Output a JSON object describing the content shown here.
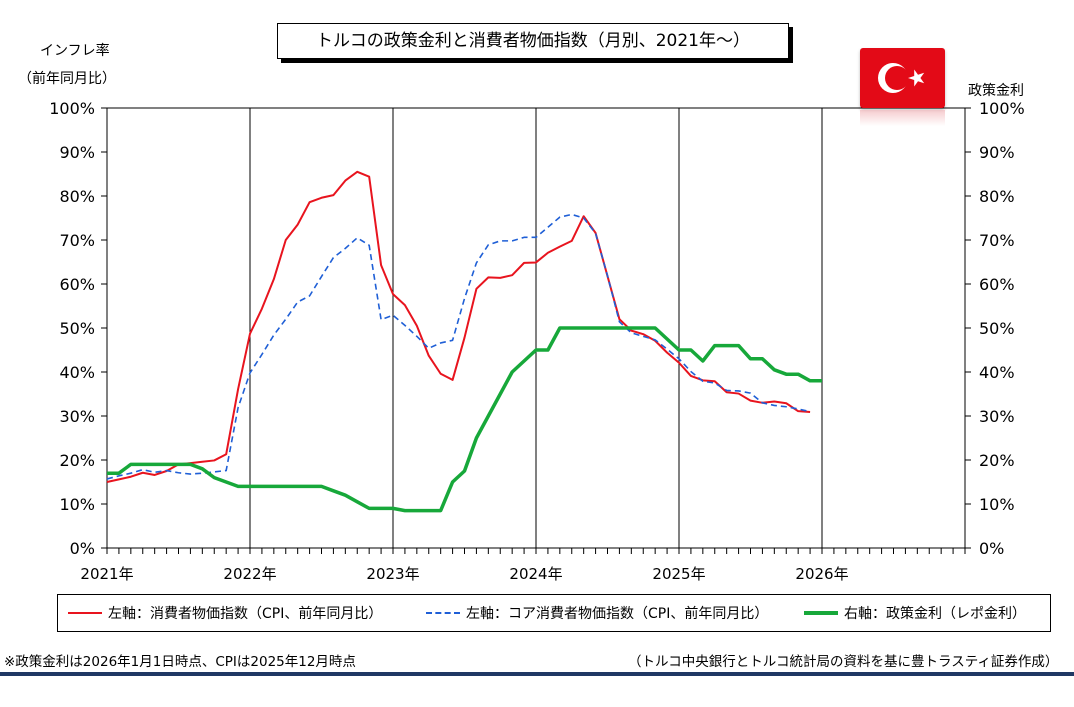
{
  "title": "トルコの政策金利と消費者物価指数（月別、2021年〜）",
  "left_axis_caption_line1": "インフレ率",
  "left_axis_caption_line2": "（前年同月比）",
  "right_axis_caption": "政策金利",
  "flag_icon": "turkey-flag-icon",
  "colors": {
    "cpi": "#e8141e",
    "core_cpi": "#1f5fd6",
    "policy_rate": "#17a83a"
  },
  "legend": {
    "cpi": "左軸：消費者物価指数（CPI、前年同月比）",
    "core_cpi": "左軸：コア消費者物価指数（CPI、前年同月比）",
    "policy_rate": "右軸：政策金利（レポ金利）"
  },
  "footnote_left": "※政策金利は2026年1月1日時点、CPIは2025年12月時点",
  "footnote_right": "（トルコ中央銀行とトルコ統計局の資料を基に豊トラスティ証券作成）",
  "chart_data": {
    "type": "line",
    "title": "トルコの政策金利と消費者物価指数（月別、2021年〜）",
    "x_unit": "month",
    "x_start": "2021-01",
    "xlim": [
      "2021-01",
      "2026-12"
    ],
    "x_ticks": [
      "2021年",
      "2022年",
      "2023年",
      "2024年",
      "2025年",
      "2026年"
    ],
    "y_left": {
      "label": "インフレ率（前年同月比）",
      "lim": [
        0,
        100
      ],
      "ticks": [
        "0%",
        "10%",
        "20%",
        "30%",
        "40%",
        "50%",
        "60%",
        "70%",
        "80%",
        "90%",
        "100%"
      ]
    },
    "y_right": {
      "label": "政策金利",
      "lim": [
        0,
        100
      ],
      "ticks": [
        "0%",
        "10%",
        "20%",
        "30%",
        "40%",
        "50%",
        "60%",
        "70%",
        "80%",
        "90%",
        "100%"
      ]
    },
    "grid": "vertical-yearly",
    "legend_position": "bottom",
    "series": [
      {
        "name": "左軸：消費者物価指数（CPI、前年同月比）",
        "axis": "left",
        "style": "solid",
        "values": [
          15.0,
          15.6,
          16.2,
          17.1,
          16.6,
          17.5,
          19.0,
          19.3,
          19.6,
          19.9,
          21.3,
          36.1,
          48.7,
          54.4,
          61.1,
          70.0,
          73.5,
          78.6,
          79.6,
          80.2,
          83.5,
          85.5,
          84.4,
          64.3,
          57.7,
          55.2,
          50.5,
          43.7,
          39.6,
          38.2,
          47.8,
          58.9,
          61.5,
          61.4,
          62.0,
          64.8,
          64.9,
          67.1,
          68.5,
          69.8,
          75.4,
          71.6,
          61.8,
          52.0,
          49.4,
          48.6,
          47.1,
          44.4,
          42.1,
          39.1,
          38.1,
          37.9,
          35.4,
          35.1,
          33.5,
          33.0,
          33.3,
          32.9,
          31.1,
          30.9
        ]
      },
      {
        "name": "左軸：コア消費者物価指数（CPI、前年同月比）",
        "axis": "left",
        "style": "dashed",
        "values": [
          15.7,
          16.4,
          17.0,
          17.8,
          17.2,
          17.6,
          17.1,
          16.8,
          17.0,
          17.3,
          17.6,
          31.9,
          39.8,
          44.0,
          48.4,
          52.0,
          55.9,
          57.3,
          61.7,
          66.0,
          68.1,
          70.5,
          68.8,
          51.9,
          52.9,
          50.6,
          48.1,
          45.4,
          46.6,
          47.2,
          56.7,
          64.8,
          68.9,
          69.8,
          69.8,
          70.6,
          70.6,
          72.9,
          75.2,
          75.8,
          75.0,
          71.5,
          61.9,
          51.4,
          48.9,
          48.1,
          47.3,
          45.2,
          43.0,
          40.1,
          37.9,
          37.5,
          35.8,
          35.7,
          35.2,
          33.0,
          32.4,
          32.1,
          31.6,
          31.0
        ]
      },
      {
        "name": "右軸：政策金利（レポ金利）",
        "axis": "right",
        "style": "solid",
        "values": [
          17.0,
          17.0,
          19.0,
          19.0,
          19.0,
          19.0,
          19.0,
          19.0,
          18.0,
          16.0,
          15.0,
          14.0,
          14.0,
          14.0,
          14.0,
          14.0,
          14.0,
          14.0,
          14.0,
          13.0,
          12.0,
          10.5,
          9.0,
          9.0,
          9.0,
          8.5,
          8.5,
          8.5,
          8.5,
          15.0,
          17.5,
          25.0,
          30.0,
          35.0,
          40.0,
          42.5,
          45.0,
          45.0,
          50.0,
          50.0,
          50.0,
          50.0,
          50.0,
          50.0,
          50.0,
          50.0,
          50.0,
          47.5,
          45.0,
          45.0,
          42.5,
          46.0,
          46.0,
          46.0,
          43.0,
          43.0,
          40.5,
          39.5,
          39.5,
          38.0,
          38.0
        ]
      }
    ]
  }
}
